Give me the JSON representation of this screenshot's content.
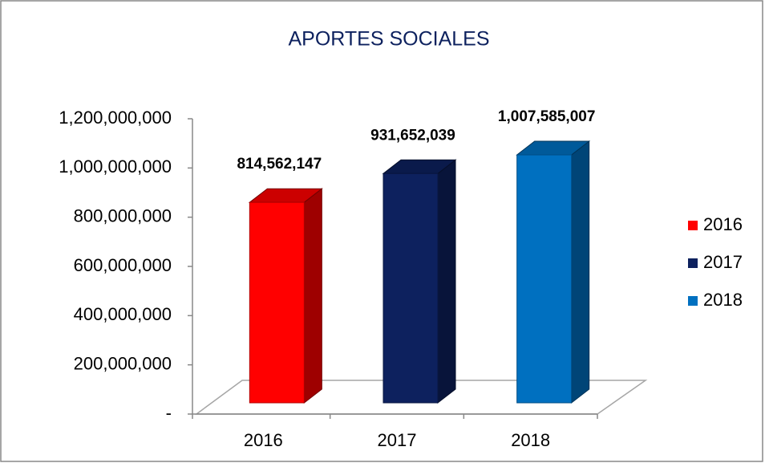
{
  "chart_data": {
    "type": "bar3d",
    "title": "APORTES SOCIALES",
    "categories": [
      "2016",
      "2017",
      "2018"
    ],
    "series": [
      {
        "name": "2016",
        "color": "#ff0000",
        "values": [
          814562147,
          null,
          null
        ],
        "value_labels": [
          "814,562,147",
          null,
          null
        ]
      },
      {
        "name": "2017",
        "color": "#0d215e",
        "values": [
          null,
          931652039,
          null
        ],
        "value_labels": [
          null,
          "931,652,039",
          null
        ]
      },
      {
        "name": "2018",
        "color": "#0070c0",
        "values": [
          null,
          null,
          1007585007
        ],
        "value_labels": [
          null,
          null,
          "1,007,585,007"
        ]
      }
    ],
    "ylim": [
      0,
      1200000000
    ],
    "yticks": [
      {
        "value": 0,
        "label": "-"
      },
      {
        "value": 200000000,
        "label": "200,000,000"
      },
      {
        "value": 400000000,
        "label": "400,000,000"
      },
      {
        "value": 600000000,
        "label": "600,000,000"
      },
      {
        "value": 800000000,
        "label": "800,000,000"
      },
      {
        "value": 1000000000,
        "label": "1,000,000,000"
      },
      {
        "value": 1200000000,
        "label": "1,200,000,000"
      }
    ],
    "legend": "right"
  }
}
